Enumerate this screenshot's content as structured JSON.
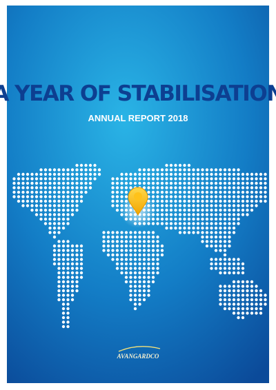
{
  "cover": {
    "title": "A YEAR OF STABILISATION",
    "subtitle": "ANNUAL REPORT 2018",
    "logo": "AVANGARDCO"
  }
}
